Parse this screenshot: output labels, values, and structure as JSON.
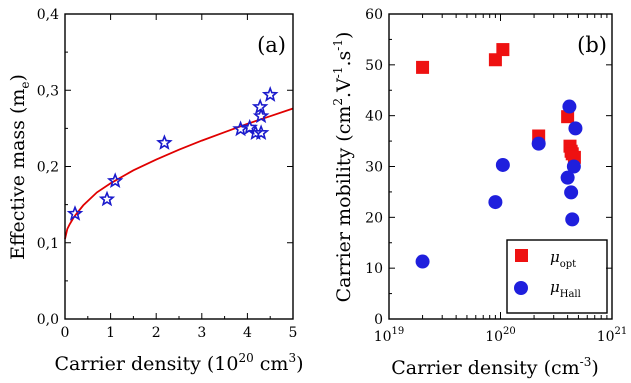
{
  "chart_data": [
    {
      "type": "scatter",
      "panel_label": "(a)",
      "xlabel": "Carrier density (10",
      "xlabel_sup": "20",
      "xlabel_tail": " cm",
      "xlabel_sup2": "3",
      "xlabel_end": ")",
      "ylabel": "Effective mass (m",
      "ylabel_sub": "e",
      "ylabel_end": ")",
      "xlim": [
        0,
        5
      ],
      "ylim": [
        0,
        0.4
      ],
      "x_ticks": [
        0,
        1,
        2,
        3,
        4,
        5
      ],
      "x_tick_labels": [
        "0",
        "1",
        "2",
        "3",
        "4",
        "5"
      ],
      "y_ticks": [
        0,
        0.1,
        0.2,
        0.3,
        0.4
      ],
      "y_tick_labels": [
        "0,0",
        "0,1",
        "0,2",
        "0,3",
        "0,4"
      ],
      "marker_color": "#1a1acc",
      "fit_color": "#e00000",
      "series": [
        {
          "marker": "star",
          "points": [
            {
              "x": 0.22,
              "y": 0.138
            },
            {
              "x": 0.92,
              "y": 0.157
            },
            {
              "x": 1.1,
              "y": 0.181
            },
            {
              "x": 2.18,
              "y": 0.231
            },
            {
              "x": 3.85,
              "y": 0.249
            },
            {
              "x": 4.05,
              "y": 0.251
            },
            {
              "x": 4.18,
              "y": 0.244
            },
            {
              "x": 4.28,
              "y": 0.278
            },
            {
              "x": 4.3,
              "y": 0.244
            },
            {
              "x": 4.3,
              "y": 0.266
            },
            {
              "x": 4.5,
              "y": 0.294
            }
          ]
        }
      ],
      "fit_curve": {
        "x": [
          0.0,
          0.05,
          0.1,
          0.2,
          0.4,
          0.7,
          1.0,
          1.5,
          2.0,
          2.5,
          3.0,
          3.5,
          4.0,
          4.5,
          5.0
        ],
        "y": [
          0.105,
          0.118,
          0.124,
          0.134,
          0.149,
          0.166,
          0.178,
          0.195,
          0.209,
          0.222,
          0.234,
          0.245,
          0.256,
          0.266,
          0.276
        ]
      }
    },
    {
      "type": "scatter",
      "panel_label": "(b)",
      "xscale": "log",
      "xlabel": "Carrier density (cm",
      "xlabel_sup": "-3",
      "xlabel_end": ")",
      "ylabel": "Carrier mobility (cm",
      "ylabel_sup1": "2",
      "ylabel_mid": ".V",
      "ylabel_sup2": "-1",
      "ylabel_mid2": ".s",
      "ylabel_sup3": "-1",
      "ylabel_end": ")",
      "xlim": [
        1e+19,
        1e+21
      ],
      "ylim": [
        0,
        60
      ],
      "x_ticks": [
        1e+19,
        1e+20,
        1e+21
      ],
      "x_tick_base": [
        "10",
        "10",
        "10"
      ],
      "x_tick_exp": [
        "19",
        "20",
        "21"
      ],
      "y_ticks": [
        0,
        10,
        20,
        30,
        40,
        50,
        60
      ],
      "y_tick_labels": [
        "0",
        "10",
        "20",
        "30",
        "40",
        "50",
        "60"
      ],
      "legend_position": "bottom-right",
      "series": [
        {
          "name": "μ",
          "name_sub": "opt",
          "marker": "square",
          "color": "#ee1111",
          "points": [
            {
              "x": 2e+19,
              "y": 49.5
            },
            {
              "x": 9e+19,
              "y": 51.0
            },
            {
              "x": 1.05e+20,
              "y": 53.0
            },
            {
              "x": 2.2e+20,
              "y": 36.0
            },
            {
              "x": 4e+20,
              "y": 39.8
            },
            {
              "x": 4.2e+20,
              "y": 34.0
            },
            {
              "x": 4.3e+20,
              "y": 33.0
            },
            {
              "x": 4.4e+20,
              "y": 32.5
            },
            {
              "x": 4.6e+20,
              "y": 31.8
            }
          ]
        },
        {
          "name": "μ",
          "name_sub": "Hall",
          "marker": "circle",
          "color": "#1f1fdd",
          "points": [
            {
              "x": 2e+19,
              "y": 11.3
            },
            {
              "x": 9e+19,
              "y": 23.0
            },
            {
              "x": 1.05e+20,
              "y": 30.3
            },
            {
              "x": 2.2e+20,
              "y": 34.5
            },
            {
              "x": 4e+20,
              "y": 27.8
            },
            {
              "x": 4.15e+20,
              "y": 41.8
            },
            {
              "x": 4.3e+20,
              "y": 24.9
            },
            {
              "x": 4.4e+20,
              "y": 19.6
            },
            {
              "x": 4.55e+20,
              "y": 30.0
            },
            {
              "x": 4.7e+20,
              "y": 37.5
            }
          ]
        }
      ]
    }
  ]
}
